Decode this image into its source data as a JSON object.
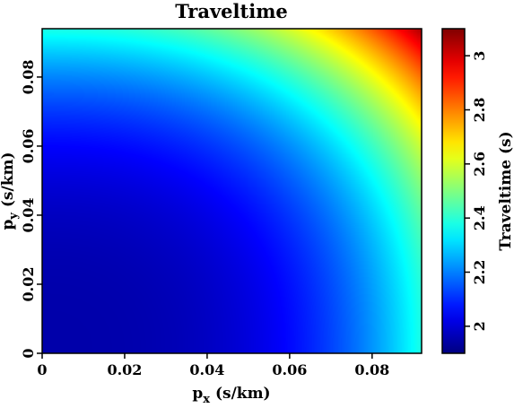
{
  "chart_data": {
    "type": "heatmap",
    "title": "Traveltime",
    "xlabel": {
      "base": "p",
      "sub": "x",
      "unit": " (s/km)"
    },
    "ylabel": {
      "base": "p",
      "sub": "y",
      "unit": " (s/km)"
    },
    "xlim": [
      0,
      0.092
    ],
    "ylim": [
      0,
      0.094
    ],
    "x_ticks": [
      "0",
      "0.02",
      "0.04",
      "0.06",
      "0.08"
    ],
    "x_tick_values": [
      0,
      0.02,
      0.04,
      0.06,
      0.08
    ],
    "y_ticks": [
      "0",
      "0.02",
      "0.04",
      "0.06",
      "0.08"
    ],
    "y_tick_values": [
      0,
      0.02,
      0.04,
      0.06,
      0.08
    ],
    "colorbar": {
      "label": "Traveltime (s)",
      "range": [
        1.9,
        3.1
      ],
      "ticks": [
        "2",
        "2.2",
        "2.4",
        "2.6",
        "2.8",
        "3"
      ],
      "tick_values": [
        2,
        2.2,
        2.4,
        2.6,
        2.8,
        3.0
      ],
      "colormap": "jet"
    },
    "field": {
      "description_of_values": "traveltime increases from about 1.95 s near (0,0) to about 3.05 s at (0.092,0.094)",
      "min": 1.95,
      "max": 3.05
    },
    "grid": false
  }
}
